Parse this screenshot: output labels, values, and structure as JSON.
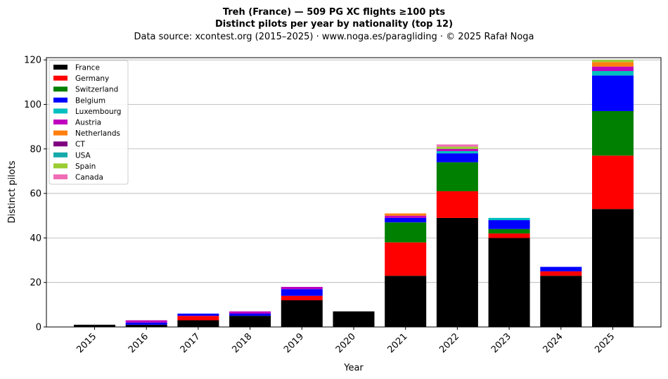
{
  "chart_data": {
    "type": "bar",
    "stacked": true,
    "title_line1": "Treh (France)  —  509 PG XC flights ≥100 pts",
    "title_line2": "Distinct pilots per year by nationality (top 12)",
    "subtitle": "Data source: xcontest.org (2015–2025)  ·  www.noga.es/paragliding  ·  © 2025 Rafał Noga",
    "xlabel": "Year",
    "ylabel": "Distinct pilots",
    "ylim": [
      0,
      121
    ],
    "yticks": [
      0,
      20,
      40,
      60,
      80,
      100,
      120
    ],
    "grid": "horizontal",
    "legend_position": "top-left",
    "categories": [
      "2015",
      "2016",
      "2017",
      "2018",
      "2019",
      "2020",
      "2021",
      "2022",
      "2023",
      "2024",
      "2025"
    ],
    "series": [
      {
        "name": "France",
        "color": "#000000",
        "values": [
          1,
          1,
          3,
          5,
          12,
          7,
          23,
          49,
          40,
          23,
          53
        ]
      },
      {
        "name": "Germany",
        "color": "#ff0000",
        "values": [
          0,
          0,
          2,
          0,
          2,
          0,
          15,
          12,
          2,
          2,
          24
        ]
      },
      {
        "name": "Switzerland",
        "color": "#008000",
        "values": [
          0,
          0,
          0,
          0,
          0,
          0,
          9,
          13,
          2,
          0,
          20
        ]
      },
      {
        "name": "Belgium",
        "color": "#0000ff",
        "values": [
          0,
          1,
          1,
          1,
          3,
          0,
          2,
          4,
          4,
          2,
          16
        ]
      },
      {
        "name": "Luxembourg",
        "color": "#00bfbf",
        "values": [
          0,
          0,
          0,
          0,
          0,
          0,
          0,
          1,
          1,
          0,
          2
        ]
      },
      {
        "name": "Austria",
        "color": "#bf00bf",
        "values": [
          0,
          1,
          0,
          1,
          1,
          0,
          1,
          1,
          0,
          0,
          2
        ]
      },
      {
        "name": "Netherlands",
        "color": "#ff7f0e",
        "values": [
          0,
          0,
          0,
          0,
          0,
          0,
          1,
          0,
          0,
          0,
          2
        ]
      },
      {
        "name": "CT",
        "color": "#800080",
        "values": [
          0,
          0,
          0,
          0,
          0,
          0,
          0,
          0,
          0,
          0,
          0
        ]
      },
      {
        "name": "USA",
        "color": "#17a9a9",
        "values": [
          0,
          0,
          0,
          0,
          0,
          0,
          0,
          0,
          0,
          0,
          0
        ]
      },
      {
        "name": "Spain",
        "color": "#9acd32",
        "values": [
          0,
          0,
          0,
          0,
          0,
          0,
          0,
          1,
          0,
          0,
          1
        ]
      },
      {
        "name": "Canada",
        "color": "#f06cb4",
        "values": [
          0,
          0,
          0,
          0,
          0,
          0,
          0,
          1,
          0,
          0,
          0
        ]
      }
    ]
  }
}
